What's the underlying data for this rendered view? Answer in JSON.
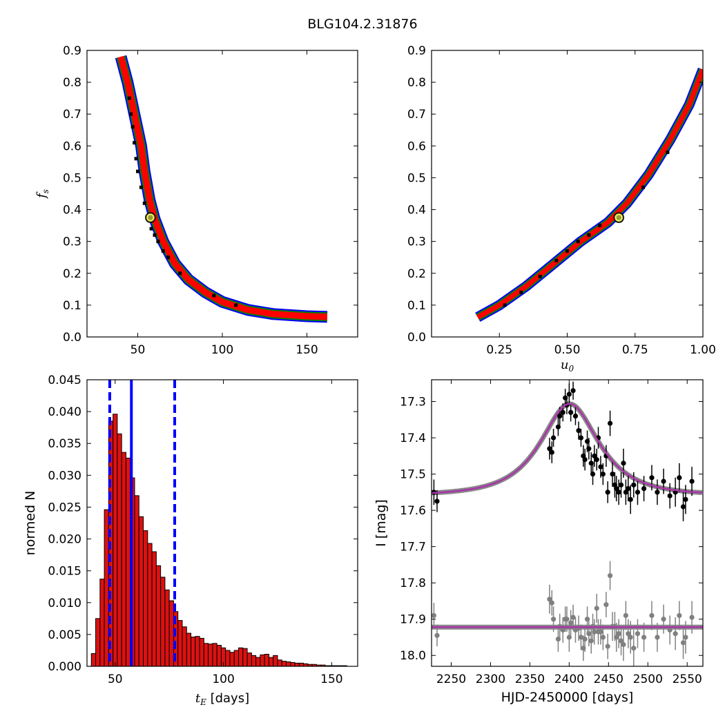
{
  "title": "BLG104.2.31876",
  "colors": {
    "sigma3": "#0000ff",
    "sigma2": "#008000",
    "sigma1": "#ff0000",
    "best": "#000000",
    "marker_fill": "#9a9a3a",
    "marker_edge": "#ffff66",
    "hist_fill": "#dd1111",
    "vline": "#0000ff",
    "data_top": "#000000",
    "data_bottom": "#808080",
    "model": "#aa33aa",
    "model_band": "#888888"
  },
  "chart_data": [
    {
      "type": "heatmap",
      "name": "panel-fs-vs-tE",
      "xlim": [
        20,
        180
      ],
      "ylim": [
        0,
        0.9
      ],
      "xticks": [
        "50",
        "100",
        "150"
      ],
      "xtick_values": [
        50,
        100,
        150
      ],
      "yticks": [
        "0.0",
        "0.1",
        "0.2",
        "0.3",
        "0.4",
        "0.5",
        "0.6",
        "0.7",
        "0.8",
        "0.9"
      ],
      "ytick_values": [
        0,
        0.1,
        0.2,
        0.3,
        0.4,
        0.5,
        0.6,
        0.7,
        0.8,
        0.9
      ],
      "ylabel_var": "f",
      "ylabel_sub": "s",
      "xlabel_var": "",
      "xlabel_sub": "",
      "xlabel_rest": "",
      "ridge": [
        [
          40,
          0.88
        ],
        [
          44,
          0.8
        ],
        [
          48,
          0.7
        ],
        [
          52,
          0.6
        ],
        [
          54,
          0.52
        ],
        [
          57,
          0.43
        ],
        [
          60,
          0.37
        ],
        [
          65,
          0.3
        ],
        [
          72,
          0.23
        ],
        [
          80,
          0.18
        ],
        [
          90,
          0.14
        ],
        [
          100,
          0.11
        ],
        [
          115,
          0.085
        ],
        [
          130,
          0.072
        ],
        [
          150,
          0.065
        ],
        [
          162,
          0.063
        ]
      ],
      "band_widths": [
        4.5,
        6.5,
        8.5
      ],
      "best_fit": [
        57.5,
        0.375
      ],
      "black_points": [
        [
          45,
          0.75
        ],
        [
          46,
          0.7
        ],
        [
          47,
          0.66
        ],
        [
          48,
          0.61
        ],
        [
          49,
          0.56
        ],
        [
          50,
          0.52
        ],
        [
          52,
          0.47
        ],
        [
          54,
          0.42
        ],
        [
          58,
          0.34
        ],
        [
          60,
          0.32
        ],
        [
          62,
          0.3
        ],
        [
          65,
          0.27
        ],
        [
          68,
          0.25
        ],
        [
          75,
          0.2
        ],
        [
          95,
          0.13
        ],
        [
          108,
          0.1
        ]
      ]
    },
    {
      "type": "heatmap",
      "name": "panel-fs-vs-u0",
      "xlim": [
        0,
        1.0
      ],
      "ylim": [
        0,
        0.9
      ],
      "xticks": [
        "0.25",
        "0.50",
        "0.75",
        "1.00"
      ],
      "xtick_values": [
        0.25,
        0.5,
        0.75,
        1.0
      ],
      "yticks": [
        "0.0",
        "0.1",
        "0.2",
        "0.3",
        "0.4",
        "0.5",
        "0.6",
        "0.7",
        "0.8",
        "0.9"
      ],
      "ytick_values": [
        0,
        0.1,
        0.2,
        0.3,
        0.4,
        0.5,
        0.6,
        0.7,
        0.8,
        0.9
      ],
      "ylabel_var": "",
      "ylabel_sub": "",
      "xlabel_var": "u",
      "xlabel_sub": "0",
      "xlabel_rest": "",
      "ridge": [
        [
          0.17,
          0.062
        ],
        [
          0.25,
          0.1
        ],
        [
          0.35,
          0.16
        ],
        [
          0.45,
          0.23
        ],
        [
          0.55,
          0.3
        ],
        [
          0.65,
          0.36
        ],
        [
          0.72,
          0.42
        ],
        [
          0.8,
          0.51
        ],
        [
          0.88,
          0.62
        ],
        [
          0.95,
          0.73
        ],
        [
          1.0,
          0.84
        ]
      ],
      "band_widths": [
        3.5,
        5.5,
        7.5
      ],
      "best_fit": [
        0.69,
        0.375
      ],
      "black_points": [
        [
          0.27,
          0.1
        ],
        [
          0.33,
          0.14
        ],
        [
          0.4,
          0.19
        ],
        [
          0.46,
          0.24
        ],
        [
          0.5,
          0.27
        ],
        [
          0.54,
          0.3
        ],
        [
          0.58,
          0.32
        ],
        [
          0.62,
          0.35
        ],
        [
          0.78,
          0.47
        ],
        [
          0.87,
          0.58
        ]
      ]
    },
    {
      "type": "bar",
      "name": "panel-histogram",
      "xlim": [
        37,
        162
      ],
      "ylim": [
        0,
        0.045
      ],
      "xticks": [
        "50",
        "100",
        "150"
      ],
      "xtick_values": [
        50,
        100,
        150
      ],
      "yticks": [
        "0.000",
        "0.005",
        "0.010",
        "0.015",
        "0.020",
        "0.025",
        "0.030",
        "0.035",
        "0.040",
        "0.045"
      ],
      "ytick_values": [
        0,
        0.005,
        0.01,
        0.015,
        0.02,
        0.025,
        0.03,
        0.035,
        0.04,
        0.045
      ],
      "ylabel": "normed N",
      "xlabel_var": "t",
      "xlabel_sub": "E",
      "xlabel_rest": " [days]",
      "bin_start": 39,
      "bin_width": 2,
      "values": [
        0.002,
        0.0075,
        0.0137,
        0.0246,
        0.0385,
        0.0396,
        0.0365,
        0.0336,
        0.0327,
        0.0296,
        0.0268,
        0.0235,
        0.0213,
        0.0193,
        0.018,
        0.0158,
        0.014,
        0.012,
        0.0103,
        0.0086,
        0.0072,
        0.0062,
        0.0052,
        0.0046,
        0.0047,
        0.0044,
        0.0036,
        0.0035,
        0.0036,
        0.0033,
        0.0029,
        0.0025,
        0.0022,
        0.0025,
        0.0029,
        0.0028,
        0.0021,
        0.0017,
        0.0014,
        0.0018,
        0.0019,
        0.0014,
        0.0017,
        0.001,
        0.0008,
        0.0007,
        0.0006,
        0.0005,
        0.0005,
        0.0004,
        0.0003,
        0.0003,
        0.0002,
        0.0002,
        0.0001,
        0.0001,
        0.0001,
        0.0001,
        0.0001,
        0.0,
        0.0
      ],
      "vline_solid": 57.5,
      "vlines_dashed": [
        47.5,
        77.5
      ]
    },
    {
      "type": "scatter",
      "name": "panel-lightcurve",
      "xlim": [
        2225,
        2570
      ],
      "ylim": [
        18.03,
        17.24
      ],
      "xticks": [
        "2250",
        "2300",
        "2350",
        "2400",
        "2450",
        "2500",
        "2550"
      ],
      "xtick_values": [
        2250,
        2300,
        2350,
        2400,
        2450,
        2500,
        2550
      ],
      "yticks": [
        "17.3",
        "17.4",
        "17.5",
        "17.6",
        "17.7",
        "17.8",
        "17.9",
        "18.0"
      ],
      "ytick_values": [
        17.3,
        17.4,
        17.5,
        17.6,
        17.7,
        17.8,
        17.9,
        18.0
      ],
      "ylabel": "I [mag]",
      "xlabel": "HJD-2450000 [days]",
      "model": {
        "baseline": 17.558,
        "peak_mag": 17.302,
        "t0": 2400.5,
        "tE": 57.5,
        "u0": 0.69,
        "fs": 0.375
      },
      "residual_baseline": 17.922,
      "series": [
        {
          "points": [
            [
              2228,
              17.55,
              0.035
            ],
            [
              2232,
              17.575,
              0.03
            ],
            [
              2375,
              17.43,
              0.03
            ],
            [
              2378,
              17.44,
              0.03
            ],
            [
              2380,
              17.4,
              0.025
            ],
            [
              2386,
              17.37,
              0.025
            ],
            [
              2388,
              17.34,
              0.025
            ],
            [
              2392,
              17.33,
              0.025
            ],
            [
              2395,
              17.29,
              0.025
            ],
            [
              2397,
              17.31,
              0.025
            ],
            [
              2400,
              17.28,
              0.03
            ],
            [
              2402,
              17.33,
              0.025
            ],
            [
              2405,
              17.27,
              0.025
            ],
            [
              2408,
              17.34,
              0.025
            ],
            [
              2412,
              17.38,
              0.025
            ],
            [
              2415,
              17.4,
              0.025
            ],
            [
              2418,
              17.45,
              0.03
            ],
            [
              2420,
              17.46,
              0.03
            ],
            [
              2423,
              17.41,
              0.03
            ],
            [
              2425,
              17.43,
              0.03
            ],
            [
              2428,
              17.47,
              0.03
            ],
            [
              2430,
              17.5,
              0.03
            ],
            [
              2432,
              17.45,
              0.03
            ],
            [
              2435,
              17.46,
              0.03
            ],
            [
              2437,
              17.4,
              0.03
            ],
            [
              2440,
              17.48,
              0.03
            ],
            [
              2443,
              17.5,
              0.03
            ],
            [
              2447,
              17.45,
              0.03
            ],
            [
              2449,
              17.55,
              0.03
            ],
            [
              2452,
              17.36,
              0.035
            ],
            [
              2455,
              17.5,
              0.035
            ],
            [
              2458,
              17.53,
              0.035
            ],
            [
              2460,
              17.54,
              0.035
            ],
            [
              2463,
              17.55,
              0.035
            ],
            [
              2466,
              17.53,
              0.035
            ],
            [
              2469,
              17.47,
              0.04
            ],
            [
              2472,
              17.55,
              0.035
            ],
            [
              2475,
              17.54,
              0.035
            ],
            [
              2478,
              17.57,
              0.04
            ],
            [
              2482,
              17.53,
              0.035
            ],
            [
              2487,
              17.55,
              0.035
            ],
            [
              2495,
              17.54,
              0.035
            ],
            [
              2505,
              17.51,
              0.035
            ],
            [
              2512,
              17.55,
              0.035
            ],
            [
              2520,
              17.52,
              0.035
            ],
            [
              2528,
              17.56,
              0.035
            ],
            [
              2535,
              17.55,
              0.04
            ],
            [
              2540,
              17.51,
              0.04
            ],
            [
              2545,
              17.59,
              0.04
            ],
            [
              2548,
              17.57,
              0.04
            ],
            [
              2556,
              17.52,
              0.04
            ]
          ]
        },
        {
          "points": [
            [
              2228,
              17.89,
              0.035
            ],
            [
              2232,
              17.945,
              0.03
            ],
            [
              2375,
              17.845,
              0.04
            ],
            [
              2378,
              17.855,
              0.035
            ],
            [
              2380,
              17.9,
              0.035
            ],
            [
              2386,
              17.955,
              0.035
            ],
            [
              2388,
              17.92,
              0.035
            ],
            [
              2392,
              17.93,
              0.035
            ],
            [
              2395,
              17.9,
              0.035
            ],
            [
              2397,
              17.9,
              0.035
            ],
            [
              2400,
              17.95,
              0.04
            ],
            [
              2402,
              17.91,
              0.035
            ],
            [
              2405,
              17.895,
              0.035
            ],
            [
              2408,
              17.93,
              0.035
            ],
            [
              2412,
              17.925,
              0.035
            ],
            [
              2415,
              17.95,
              0.035
            ],
            [
              2418,
              17.98,
              0.035
            ],
            [
              2420,
              17.955,
              0.035
            ],
            [
              2423,
              17.9,
              0.035
            ],
            [
              2425,
              17.94,
              0.035
            ],
            [
              2428,
              17.96,
              0.035
            ],
            [
              2430,
              17.92,
              0.035
            ],
            [
              2432,
              17.935,
              0.035
            ],
            [
              2435,
              17.87,
              0.04
            ],
            [
              2437,
              17.935,
              0.035
            ],
            [
              2440,
              17.935,
              0.035
            ],
            [
              2443,
              17.95,
              0.035
            ],
            [
              2447,
              17.86,
              0.035
            ],
            [
              2449,
              17.975,
              0.035
            ],
            [
              2452,
              17.78,
              0.04
            ],
            [
              2455,
              17.92,
              0.04
            ],
            [
              2458,
              17.92,
              0.04
            ],
            [
              2460,
              17.95,
              0.04
            ],
            [
              2463,
              17.94,
              0.04
            ],
            [
              2466,
              17.96,
              0.04
            ],
            [
              2469,
              17.97,
              0.045
            ],
            [
              2472,
              17.89,
              0.04
            ],
            [
              2475,
              17.94,
              0.04
            ],
            [
              2478,
              17.95,
              0.045
            ],
            [
              2482,
              17.98,
              0.05
            ],
            [
              2487,
              17.94,
              0.04
            ],
            [
              2495,
              17.95,
              0.04
            ],
            [
              2505,
              17.89,
              0.04
            ],
            [
              2512,
              17.95,
              0.04
            ],
            [
              2520,
              17.9,
              0.04
            ],
            [
              2528,
              17.93,
              0.04
            ],
            [
              2535,
              17.94,
              0.045
            ],
            [
              2540,
              17.89,
              0.04
            ],
            [
              2545,
              17.965,
              0.045
            ],
            [
              2548,
              17.95,
              0.045
            ],
            [
              2556,
              17.895,
              0.045
            ]
          ]
        }
      ]
    }
  ]
}
